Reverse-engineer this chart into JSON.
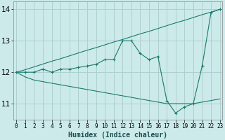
{
  "xlabel": "Humidex (Indice chaleur)",
  "x": [
    0,
    1,
    2,
    3,
    4,
    5,
    6,
    7,
    8,
    9,
    10,
    11,
    12,
    13,
    14,
    15,
    16,
    17,
    18,
    19,
    20,
    21,
    22,
    23
  ],
  "line1": [
    12.0,
    12.0,
    12.0,
    12.1,
    12.0,
    12.1,
    12.1,
    12.15,
    12.2,
    12.25,
    12.4,
    12.4,
    13.0,
    13.0,
    12.6,
    12.4,
    12.5,
    11.1,
    10.7,
    10.9,
    11.0,
    12.2,
    13.9,
    14.0
  ],
  "line2": [
    12.0,
    11.85,
    11.75,
    11.7,
    11.65,
    11.6,
    11.55,
    11.5,
    11.45,
    11.4,
    11.35,
    11.3,
    11.25,
    11.2,
    11.15,
    11.1,
    11.05,
    11.0,
    11.0,
    11.0,
    11.0,
    11.05,
    11.1,
    11.15
  ],
  "line3": [
    12.0,
    12.08,
    12.17,
    12.26,
    12.35,
    12.43,
    12.52,
    12.61,
    12.7,
    12.78,
    12.87,
    12.96,
    13.04,
    13.13,
    13.22,
    13.3,
    13.39,
    13.48,
    13.57,
    13.65,
    13.74,
    13.83,
    13.91,
    14.0
  ],
  "bg_color": "#cceaea",
  "line_color": "#1a7a6e",
  "grid_color": "#aacccc",
  "ylim": [
    10.5,
    14.25
  ],
  "yticks": [
    11,
    12,
    13,
    14
  ],
  "xticks": [
    0,
    1,
    2,
    3,
    4,
    5,
    6,
    7,
    8,
    9,
    10,
    11,
    12,
    13,
    14,
    15,
    16,
    17,
    18,
    19,
    20,
    21,
    22,
    23
  ]
}
